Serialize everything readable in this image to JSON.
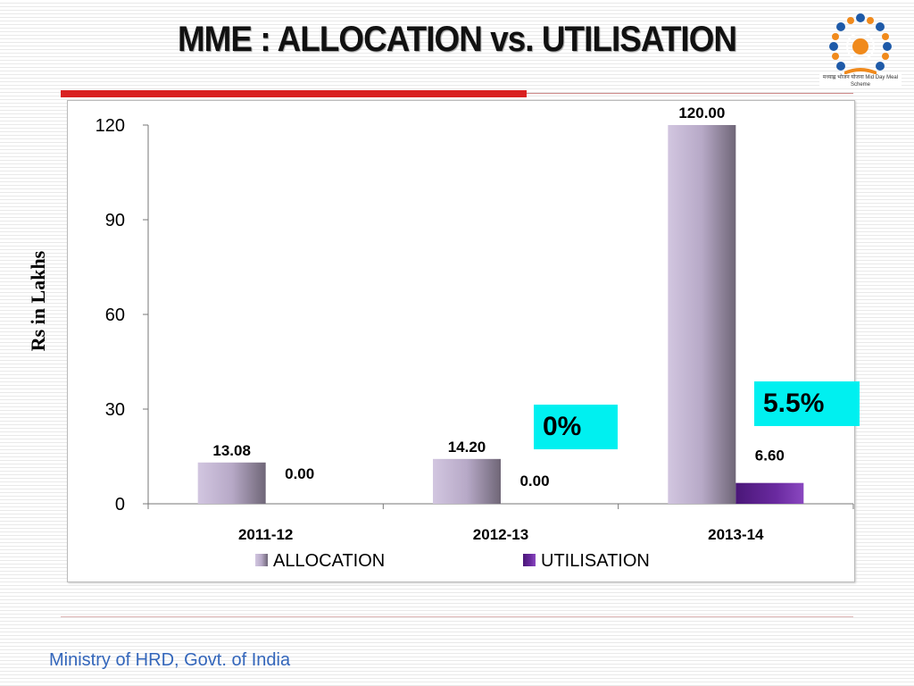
{
  "slide": {
    "title": "MME : ALLOCATION vs. UTILISATION",
    "footer": "Ministry of HRD, Govt. of India",
    "logo_text": "मध्याह्न भोजन योजना Mid Day Meal Scheme"
  },
  "callouts": [
    {
      "text": "0%"
    },
    {
      "text": "5.5%"
    }
  ],
  "colors": {
    "allocation": "#b9aac9",
    "utilisation": "#6a2aa0",
    "callout": "#00f0f0",
    "title_rule": "#d92020"
  },
  "chart_data": {
    "type": "bar",
    "categories": [
      "2011-12",
      "2012-13",
      "2013-14"
    ],
    "series": [
      {
        "name": "ALLOCATION",
        "values": [
          13.08,
          14.2,
          120.0
        ],
        "labels": [
          "13.08",
          "14.20",
          "120.00"
        ]
      },
      {
        "name": "UTILISATION",
        "values": [
          0.0,
          0.0,
          6.6
        ],
        "labels": [
          "0.00",
          "0.00",
          "6.60"
        ]
      }
    ],
    "ylabel": "Rs in Lakhs",
    "xlabel": "",
    "ylim": [
      0,
      120
    ],
    "yticks": [
      "0",
      "30",
      "60",
      "90",
      "120"
    ],
    "ytick_values": [
      0,
      30,
      60,
      90,
      120
    ],
    "grid": false,
    "legend": "bottom"
  }
}
